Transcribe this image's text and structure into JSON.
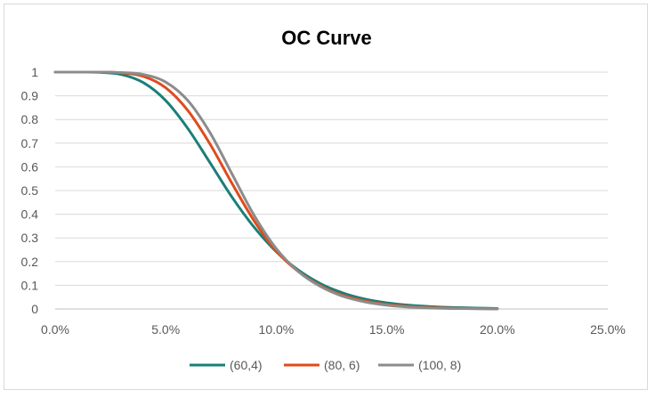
{
  "chart_data": {
    "type": "line",
    "title": "OC Curve",
    "xlabel": "",
    "ylabel": "",
    "xlim": [
      0,
      0.25
    ],
    "ylim": [
      0,
      1
    ],
    "grid": true,
    "legend_position": "bottom",
    "x_ticks": [
      0,
      0.05,
      0.1,
      0.15,
      0.2,
      0.25
    ],
    "x_tick_labels": [
      "0.0%",
      "5.0%",
      "10.0%",
      "15.0%",
      "20.0%",
      "25.0%"
    ],
    "y_ticks": [
      0,
      0.1,
      0.2,
      0.3,
      0.4,
      0.5,
      0.6,
      0.7,
      0.8,
      0.9,
      1
    ],
    "y_tick_labels": [
      "0",
      "0.1",
      "0.2",
      "0.3",
      "0.4",
      "0.5",
      "0.6",
      "0.7",
      "0.8",
      "0.9",
      "1"
    ],
    "x": [
      0.0,
      0.01,
      0.02,
      0.03,
      0.04,
      0.05,
      0.06,
      0.07,
      0.08,
      0.09,
      0.1,
      0.11,
      0.12,
      0.13,
      0.14,
      0.15,
      0.16,
      0.17,
      0.18,
      0.19,
      0.2
    ],
    "series": [
      {
        "name": "(60,4)",
        "color": "#1a7f78",
        "values": [
          1.0,
          1.0,
          0.999,
          0.99,
          0.955,
          0.88,
          0.762,
          0.618,
          0.472,
          0.345,
          0.242,
          0.164,
          0.107,
          0.068,
          0.042,
          0.026,
          0.016,
          0.01,
          0.006,
          0.004,
          0.002
        ]
      },
      {
        "name": "(80, 6)",
        "color": "#e04b1b",
        "values": [
          1.0,
          1.0,
          1.0,
          0.997,
          0.982,
          0.934,
          0.838,
          0.697,
          0.53,
          0.372,
          0.245,
          0.158,
          0.098,
          0.058,
          0.034,
          0.019,
          0.011,
          0.006,
          0.003,
          0.002,
          0.001
        ]
      },
      {
        "name": "(100, 8)",
        "color": "#8c8c8c",
        "values": [
          1.0,
          1.0,
          1.0,
          0.998,
          0.99,
          0.958,
          0.88,
          0.745,
          0.57,
          0.395,
          0.255,
          0.158,
          0.095,
          0.054,
          0.03,
          0.016,
          0.008,
          0.004,
          0.002,
          0.001,
          0.0
        ]
      }
    ]
  }
}
